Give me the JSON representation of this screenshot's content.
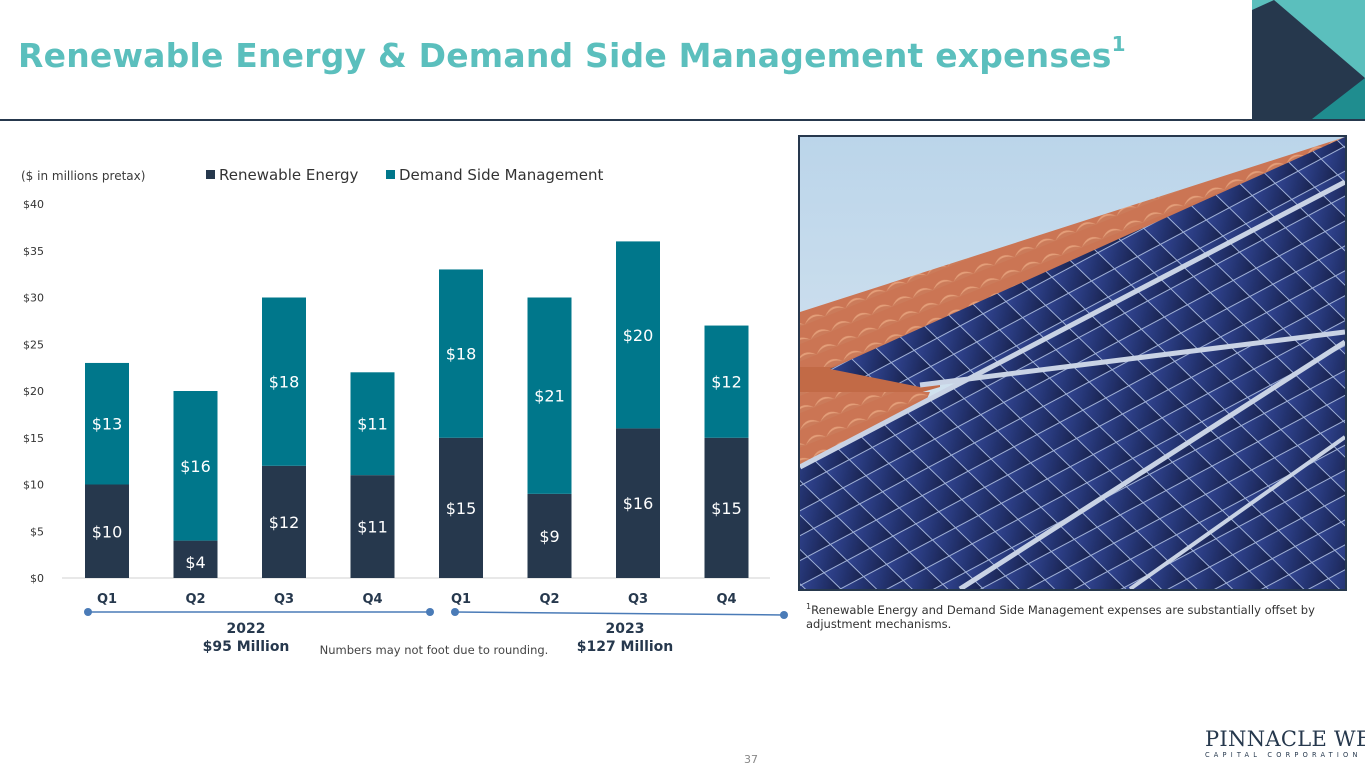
{
  "page": {
    "title": "Renewable Energy & Demand Side Management expenses",
    "title_superscript": "1",
    "page_number": "37"
  },
  "colors": {
    "title": "#5bbfbd",
    "renewable": "#26384d",
    "dsm": "#00778b",
    "navy": "#26384d",
    "teal": "#5bbfbd",
    "year_line": "#4a7bb7"
  },
  "chart_note": "($ in millions pretax)",
  "chart_data": {
    "type": "bar",
    "stacked": true,
    "categories": [
      "Q1",
      "Q2",
      "Q3",
      "Q4",
      "Q1",
      "Q2",
      "Q3",
      "Q4"
    ],
    "series": [
      {
        "name": "Renewable Energy",
        "values": [
          10,
          4,
          12,
          11,
          15,
          9,
          16,
          15
        ],
        "labels": [
          "$10",
          "$4",
          "$12",
          "$11",
          "$15",
          "$9",
          "$16",
          "$15"
        ]
      },
      {
        "name": "Demand Side Management",
        "values": [
          13,
          16,
          18,
          11,
          18,
          21,
          20,
          12
        ],
        "labels": [
          "$13",
          "$16",
          "$18",
          "$11",
          "$18",
          "$21",
          "$20",
          "$12"
        ]
      }
    ],
    "ylim": [
      0,
      40
    ],
    "yticks": [
      0,
      5,
      10,
      15,
      20,
      25,
      30,
      35,
      40
    ],
    "ytick_labels": [
      "$0",
      "$5",
      "$10",
      "$15",
      "$20",
      "$25",
      "$30",
      "$35",
      "$40"
    ],
    "legend_position": "top",
    "groups": [
      {
        "year": "2022",
        "total": "$95 Million"
      },
      {
        "year": "2023",
        "total": "$127 Million"
      }
    ],
    "rounding_note": "Numbers may not foot due to rounding."
  },
  "footnote": {
    "marker": "1",
    "text": "Renewable Energy and Demand Side Management expenses are substantially offset by adjustment mechanisms."
  },
  "photo": {
    "icon": "solar-panels-photo"
  },
  "logo": {
    "name": "PINNACLE WEST",
    "tagline": "CAPITAL CORPORATION"
  }
}
